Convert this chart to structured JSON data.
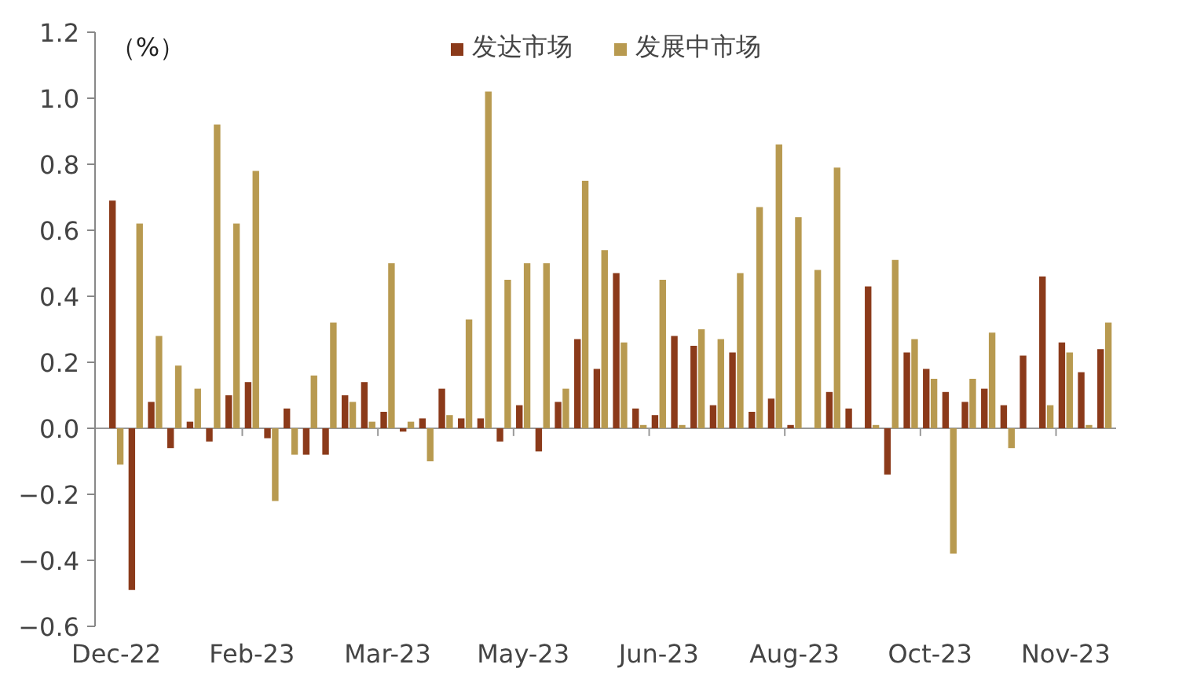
{
  "chart_data": {
    "type": "bar",
    "ylabel": "（%）",
    "categories": [
      "Dec-22",
      null,
      null,
      null,
      null,
      null,
      null,
      "Feb-23",
      null,
      null,
      null,
      null,
      null,
      null,
      "Mar-23",
      null,
      null,
      null,
      null,
      null,
      null,
      "May-23",
      null,
      null,
      null,
      null,
      null,
      null,
      "Jun-23",
      null,
      null,
      null,
      null,
      null,
      null,
      "Aug-23",
      null,
      null,
      null,
      null,
      null,
      null,
      "Oct-23",
      null,
      null,
      null,
      null,
      null,
      null,
      "Nov-23",
      null,
      null
    ],
    "series": [
      {
        "name": "发达市场",
        "color": "#8b3a1a",
        "values": [
          0.69,
          -0.49,
          0.08,
          -0.06,
          0.02,
          -0.04,
          0.1,
          0.14,
          -0.03,
          0.06,
          -0.08,
          -0.08,
          0.1,
          0.14,
          0.05,
          -0.01,
          0.03,
          0.12,
          0.03,
          0.03,
          -0.04,
          0.07,
          -0.07,
          0.08,
          0.27,
          0.18,
          0.47,
          0.06,
          0.04,
          0.28,
          0.25,
          0.07,
          0.23,
          0.05,
          0.09,
          0.01,
          0.0,
          0.11,
          0.06,
          0.43,
          -0.14,
          0.23,
          0.18,
          0.11,
          0.08,
          0.12,
          0.07,
          0.22,
          0.46,
          0.26,
          0.17,
          0.24
        ]
      },
      {
        "name": "发展中市场",
        "color": "#b89a50",
        "values": [
          -0.11,
          0.62,
          0.28,
          0.19,
          0.12,
          0.92,
          0.62,
          0.78,
          -0.22,
          -0.08,
          0.16,
          0.32,
          0.08,
          0.02,
          0.5,
          0.02,
          -0.1,
          0.04,
          0.33,
          1.02,
          0.45,
          0.5,
          0.5,
          0.12,
          0.75,
          0.54,
          0.26,
          0.01,
          0.45,
          0.01,
          0.3,
          0.27,
          0.47,
          0.67,
          0.86,
          0.64,
          0.48,
          0.79,
          0.0,
          0.01,
          0.51,
          0.27,
          0.15,
          -0.38,
          0.15,
          0.29,
          -0.06,
          0.0,
          0.07,
          0.23,
          0.01,
          0.32
        ]
      }
    ],
    "ylim": [
      -0.6,
      1.2
    ],
    "yticks": [
      -0.6,
      -0.4,
      -0.2,
      {
        "value": 0,
        "label": "0.0"
      },
      0.2,
      0.4,
      0.6,
      0.8,
      {
        "value": 1,
        "label": "1.0"
      },
      1.2
    ],
    "legend": "top"
  }
}
